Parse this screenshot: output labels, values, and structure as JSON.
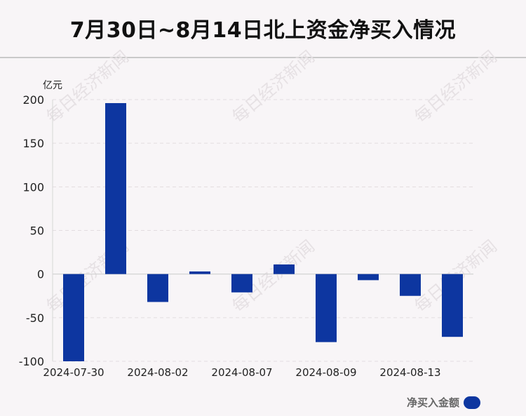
{
  "title": "7月30日~8月14日北上资金净买入情况",
  "unit": "亿元",
  "watermark": "每日经济新闻",
  "colors": {
    "bar": "#0d36a0",
    "legend": "#0d36a0"
  },
  "chart_data": {
    "type": "bar",
    "categories": [
      "2024-07-30",
      "2024-07-31",
      "2024-08-02",
      "2024-08-05",
      "2024-08-07",
      "2024-08-08",
      "2024-08-09",
      "2024-08-12",
      "2024-08-13",
      "2024-08-14"
    ],
    "tick_labels": [
      "2024-07-30",
      "2024-08-02",
      "2024-08-07",
      "2024-08-09",
      "2024-08-13"
    ],
    "series": [
      {
        "name": "净买入金额",
        "values": [
          -100,
          196,
          -32,
          3,
          -21,
          11,
          -78,
          -7,
          -25,
          -72
        ]
      }
    ],
    "ylim": [
      -100,
      200
    ],
    "yticks": [
      -100,
      -50,
      0,
      50,
      100,
      150,
      200
    ],
    "ylabel": "亿元",
    "grid": true,
    "legend_position": "bottom-right"
  }
}
